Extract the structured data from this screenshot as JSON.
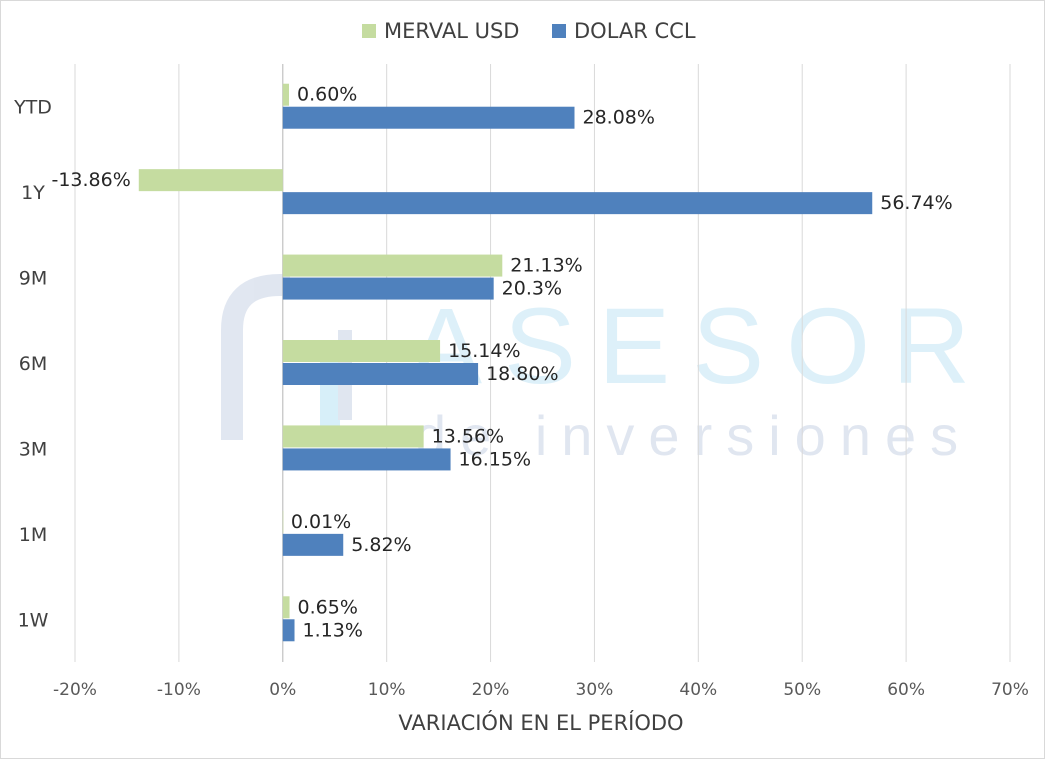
{
  "chart_data": {
    "type": "bar",
    "orientation": "horizontal",
    "categories": [
      "YTD",
      "1Y",
      "9M",
      "6M",
      "3M",
      "1M",
      "1W"
    ],
    "series": [
      {
        "name": "MERVAL USD",
        "color": "#c5dca0",
        "values": [
          0.6,
          -13.86,
          21.13,
          15.14,
          13.56,
          0.01,
          0.65
        ],
        "labels": [
          "0.60%",
          "-13.86%",
          "21.13%",
          "15.14%",
          "13.56%",
          "0.01%",
          "0.65%"
        ]
      },
      {
        "name": "DOLAR CCL",
        "color": "#4f81bd",
        "values": [
          28.08,
          56.74,
          20.3,
          18.8,
          16.15,
          5.82,
          1.13
        ],
        "labels": [
          "28.08%",
          "56.74%",
          "20.3%",
          "18.80%",
          "16.15%",
          "5.82%",
          "1.13%"
        ]
      }
    ],
    "xticks": [
      "-20%",
      "-10%",
      "0%",
      "10%",
      "20%",
      "30%",
      "40%",
      "50%",
      "60%",
      "70%"
    ],
    "xlim": [
      -20,
      70
    ],
    "xlabel": "VARIACIÓN EN EL PERÍODO",
    "legend": "top",
    "grid": "vertical"
  },
  "watermark": {
    "title": "ASESOR",
    "subtitle": "de inversiones"
  }
}
